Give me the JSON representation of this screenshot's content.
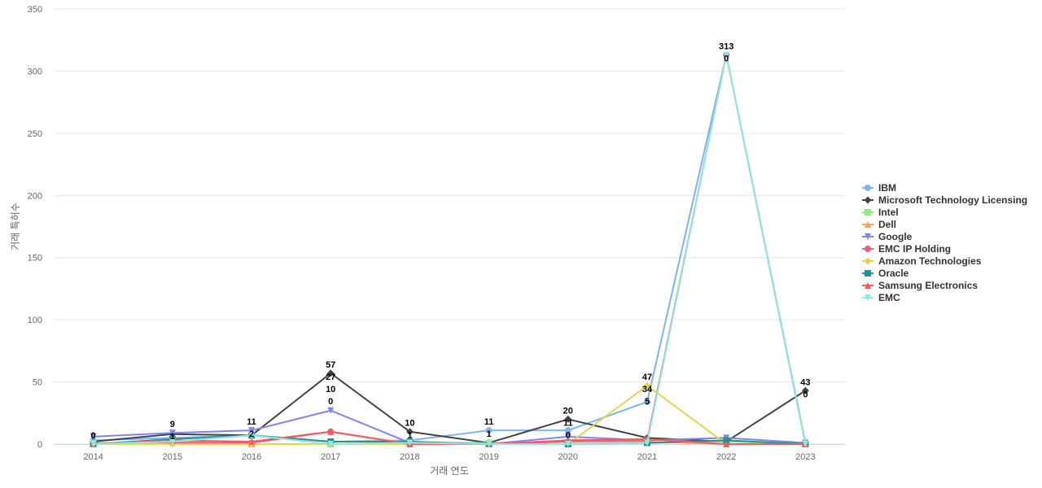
{
  "chart_data": {
    "type": "line",
    "title": "",
    "xlabel": "거래 연도",
    "ylabel": "거래 특허수",
    "ylim": [
      0,
      350
    ],
    "yticks": [
      0,
      50,
      100,
      150,
      200,
      250,
      300,
      350
    ],
    "categories": [
      "2014",
      "2015",
      "2016",
      "2017",
      "2018",
      "2019",
      "2020",
      "2021",
      "2022",
      "2023"
    ],
    "legend_position": "right",
    "grid": true,
    "series": [
      {
        "name": "IBM",
        "color": "#7cb5ec",
        "marker": "circle",
        "values": [
          3,
          5,
          7,
          2,
          3,
          11,
          11,
          34,
          313,
          1
        ]
      },
      {
        "name": "Microsoft Technology Licensing",
        "color": "#434348",
        "marker": "diamond",
        "values": [
          2,
          8,
          7,
          57,
          10,
          1,
          20,
          5,
          2,
          43
        ]
      },
      {
        "name": "Intel",
        "color": "#90ed7d",
        "marker": "square",
        "values": [
          1,
          1,
          0,
          0,
          1,
          1,
          0,
          1,
          2,
          0
        ]
      },
      {
        "name": "Dell",
        "color": "#f7a35c",
        "marker": "triangle",
        "values": [
          0,
          2,
          0,
          0,
          0,
          0,
          0,
          2,
          0,
          0
        ]
      },
      {
        "name": "Google",
        "color": "#8085e9",
        "marker": "triangle-down",
        "values": [
          6,
          9,
          11,
          27,
          1,
          0,
          6,
          3,
          5,
          1
        ]
      },
      {
        "name": "EMC IP Holding",
        "color": "#f15c80",
        "marker": "circle",
        "values": [
          0,
          1,
          1,
          10,
          0,
          0,
          2,
          3,
          313,
          0
        ]
      },
      {
        "name": "Amazon Technologies",
        "color": "#e4d354",
        "marker": "diamond",
        "values": [
          0,
          0,
          0,
          0,
          0,
          0,
          0,
          47,
          0,
          0
        ]
      },
      {
        "name": "Oracle",
        "color": "#2b908f",
        "marker": "square",
        "values": [
          0,
          4,
          7,
          2,
          2,
          0,
          0,
          1,
          3,
          0
        ]
      },
      {
        "name": "Samsung Electronics",
        "color": "#f45b5b",
        "marker": "triangle",
        "values": [
          0,
          3,
          2,
          10,
          0,
          0,
          3,
          4,
          0,
          0
        ]
      },
      {
        "name": "EMC",
        "color": "#91e8e1",
        "marker": "triangle-down",
        "values": [
          0,
          2,
          7,
          0,
          1,
          0,
          0,
          1,
          313,
          0
        ]
      }
    ],
    "data_labels": [
      {
        "x": "2014",
        "text": "0"
      },
      {
        "x": "2015",
        "text": "9"
      },
      {
        "x": "2015",
        "text": "1"
      },
      {
        "x": "2016",
        "text": "11"
      },
      {
        "x": "2016",
        "text": "2"
      },
      {
        "x": "2017",
        "text": "57"
      },
      {
        "x": "2017",
        "text": "27"
      },
      {
        "x": "2017",
        "text": "10"
      },
      {
        "x": "2017",
        "text": "0"
      },
      {
        "x": "2018",
        "text": "10"
      },
      {
        "x": "2018",
        "text": "1"
      },
      {
        "x": "2019",
        "text": "11"
      },
      {
        "x": "2019",
        "text": "1"
      },
      {
        "x": "2020",
        "text": "20"
      },
      {
        "x": "2020",
        "text": "11"
      },
      {
        "x": "2020",
        "text": "0"
      },
      {
        "x": "2021",
        "text": "47"
      },
      {
        "x": "2021",
        "text": "34"
      },
      {
        "x": "2021",
        "text": "5"
      },
      {
        "x": "2022",
        "text": "313"
      },
      {
        "x": "2022",
        "text": "0"
      },
      {
        "x": "2023",
        "text": "43"
      },
      {
        "x": "2023",
        "text": "0"
      }
    ]
  }
}
